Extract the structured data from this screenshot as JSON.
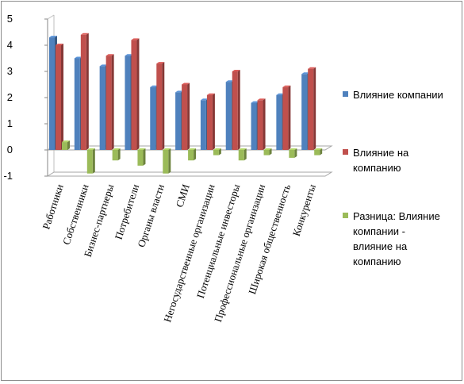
{
  "chart_data": {
    "type": "bar",
    "categories": [
      "Работники",
      "Собственники",
      "Бизнес-партнеры",
      "Потребители",
      "Органы власти",
      "СМИ",
      "Негосударственные организации",
      "Потенциальные инвесторы",
      "Профессиональные организации",
      "Широкая общественность",
      "Конкуренты"
    ],
    "series": [
      {
        "name": "Влияние компании",
        "color": "#4f81bd",
        "values": [
          4.3,
          3.5,
          3.2,
          3.6,
          2.4,
          2.2,
          1.9,
          2.6,
          1.8,
          2.1,
          2.9
        ]
      },
      {
        "name": "Влияние на компанию",
        "color": "#c0504d",
        "values": [
          4.0,
          4.4,
          3.6,
          4.2,
          3.3,
          2.5,
          2.1,
          3.0,
          1.9,
          2.4,
          3.1
        ]
      },
      {
        "name": "Разница: Влияние компании - влияние на компанию",
        "color": "#9bbb59",
        "values": [
          0.3,
          -0.9,
          -0.4,
          -0.6,
          -0.9,
          -0.4,
          -0.2,
          -0.4,
          -0.2,
          -0.3,
          -0.2
        ]
      }
    ],
    "y_ticks": [
      "-1",
      "0",
      "1",
      "2",
      "3",
      "4",
      "5"
    ],
    "ylim": [
      -1,
      5
    ],
    "grid": false,
    "legend_position": "right",
    "legend_lines": [
      [
        "Влияние компании"
      ],
      [
        "Влияние на",
        "компанию"
      ],
      [
        "Разница: Влияние",
        "компании -",
        "влияние на",
        "компанию"
      ]
    ]
  }
}
